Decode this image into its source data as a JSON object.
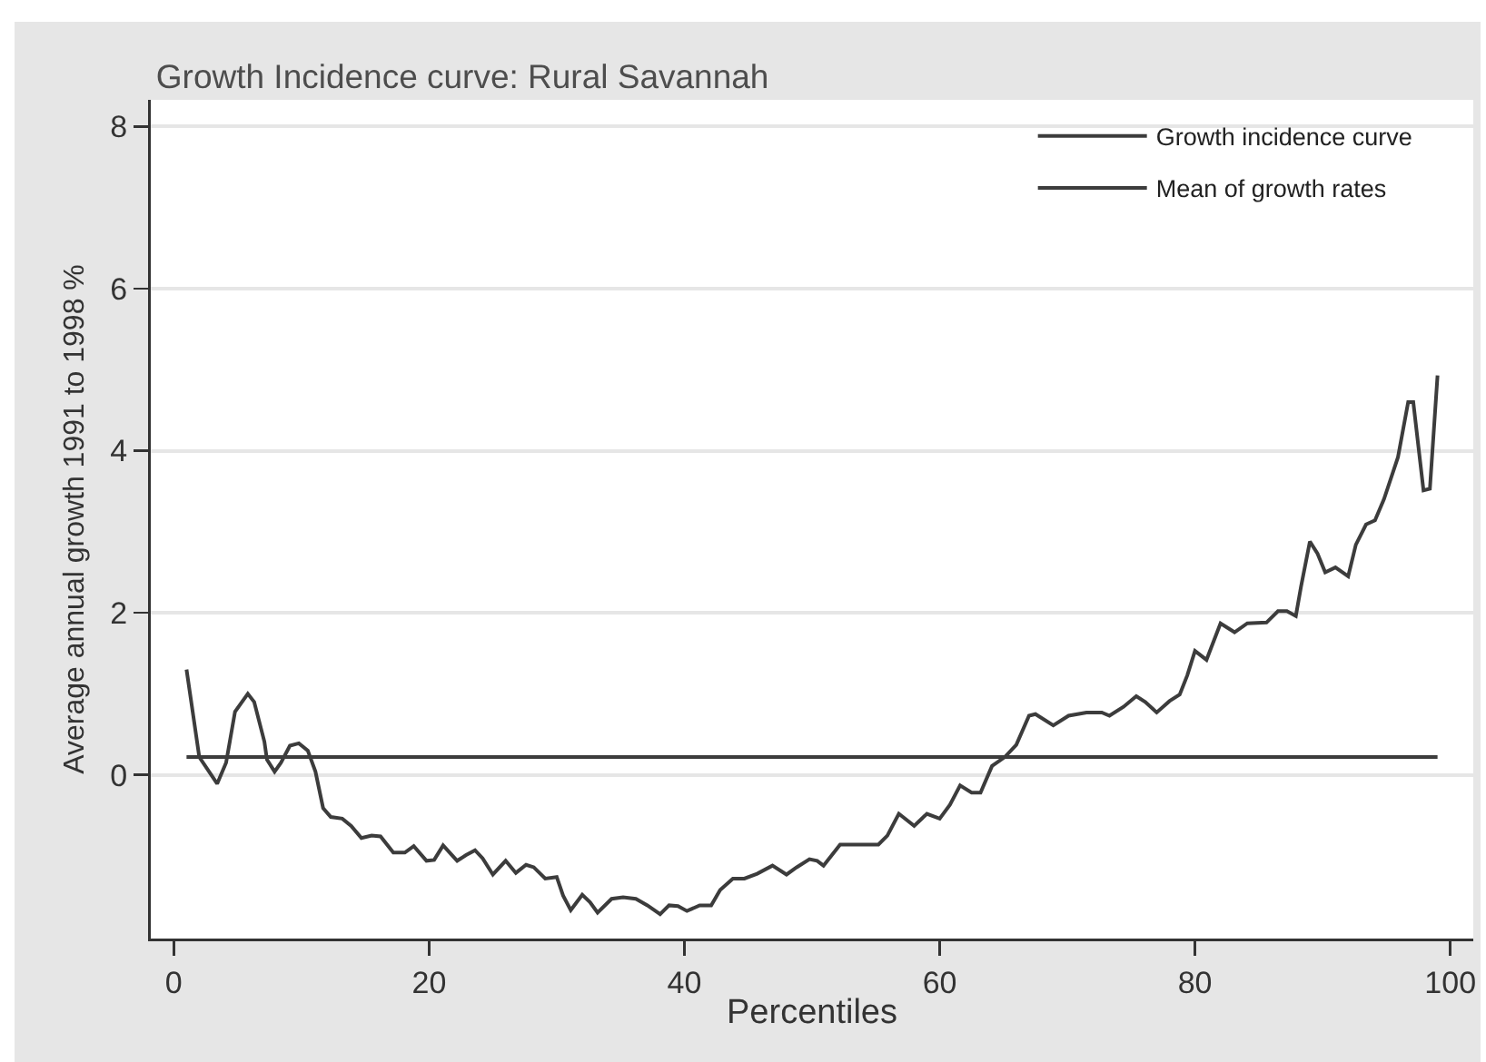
{
  "chart_data": {
    "type": "line",
    "title": "Growth Incidence curve: Rural Savannah",
    "xlabel": "Percentiles",
    "ylabel": "Average annual growth 1991 to 1998 %",
    "xlim": [
      -1.8,
      101.8
    ],
    "xticks": [
      0,
      20,
      40,
      60,
      80,
      100
    ],
    "ylim": [
      -2.02,
      8.33
    ],
    "yticks": [
      0,
      2,
      4,
      6,
      8
    ],
    "grid": "y",
    "legend": "top right",
    "marker": "none",
    "line_style": "solid",
    "series": [
      {
        "name": "Growth incidence curve",
        "color": "#3c3c3c",
        "x": [
          1.0,
          2.0,
          3.4,
          4.1,
          4.8,
          5.8,
          6.3,
          7.1,
          7.3,
          7.9,
          8.4,
          9.1,
          9.8,
          10.5,
          11.1,
          11.7,
          12.3,
          13.2,
          13.9,
          14.7,
          15.5,
          16.2,
          17.2,
          18.1,
          18.8,
          19.8,
          20.4,
          21.1,
          22.2,
          22.9,
          23.6,
          24.2,
          25.0,
          26.0,
          26.8,
          27.6,
          28.2,
          29.1,
          30.0,
          30.5,
          31.1,
          32.0,
          32.6,
          33.2,
          34.3,
          35.2,
          36.2,
          37.1,
          38.1,
          38.8,
          39.5,
          40.2,
          41.2,
          42.1,
          42.8,
          43.8,
          44.7,
          45.7,
          46.9,
          48.0,
          48.8,
          49.8,
          50.4,
          50.9,
          52.2,
          55.2,
          55.9,
          56.8,
          58.0,
          59.0,
          60.0,
          60.8,
          61.6,
          62.5,
          63.2,
          64.1,
          65.1,
          66.0,
          67.0,
          67.5,
          68.9,
          70.1,
          71.5,
          72.7,
          73.3,
          74.4,
          75.4,
          76.1,
          77.0,
          78.0,
          78.8,
          79.4,
          80.0,
          80.9,
          82.0,
          83.1,
          84.1,
          85.6,
          86.5,
          87.2,
          87.9,
          88.3,
          89.0,
          89.6,
          90.2,
          91.0,
          92.0,
          92.6,
          93.4,
          94.1,
          94.8,
          95.9,
          96.7,
          97.1,
          97.9,
          98.4,
          99.0
        ],
        "values": [
          1.3,
          0.22,
          -0.11,
          0.15,
          0.78,
          1.0,
          0.9,
          0.41,
          0.19,
          0.04,
          0.15,
          0.36,
          0.39,
          0.3,
          0.04,
          -0.41,
          -0.52,
          -0.54,
          -0.63,
          -0.78,
          -0.75,
          -0.76,
          -0.96,
          -0.96,
          -0.88,
          -1.06,
          -1.05,
          -0.87,
          -1.06,
          -0.99,
          -0.93,
          -1.03,
          -1.23,
          -1.06,
          -1.21,
          -1.11,
          -1.14,
          -1.28,
          -1.26,
          -1.49,
          -1.67,
          -1.48,
          -1.57,
          -1.7,
          -1.53,
          -1.51,
          -1.53,
          -1.61,
          -1.72,
          -1.61,
          -1.62,
          -1.68,
          -1.61,
          -1.61,
          -1.42,
          -1.28,
          -1.28,
          -1.22,
          -1.12,
          -1.23,
          -1.14,
          -1.04,
          -1.06,
          -1.12,
          -0.86,
          -0.86,
          -0.75,
          -0.48,
          -0.63,
          -0.48,
          -0.54,
          -0.37,
          -0.13,
          -0.22,
          -0.22,
          0.11,
          0.22,
          0.37,
          0.73,
          0.75,
          0.61,
          0.73,
          0.77,
          0.77,
          0.73,
          0.84,
          0.97,
          0.9,
          0.77,
          0.91,
          0.99,
          1.23,
          1.53,
          1.42,
          1.87,
          1.76,
          1.87,
          1.88,
          2.02,
          2.02,
          1.96,
          2.32,
          2.88,
          2.73,
          2.5,
          2.56,
          2.45,
          2.84,
          3.09,
          3.14,
          3.4,
          3.92,
          4.6,
          4.6,
          3.51,
          3.53,
          4.93
        ]
      },
      {
        "name": "Mean of growth rates",
        "color": "#3c3c3c",
        "x": [
          1,
          99
        ],
        "values": [
          0.22,
          0.22
        ]
      }
    ]
  }
}
